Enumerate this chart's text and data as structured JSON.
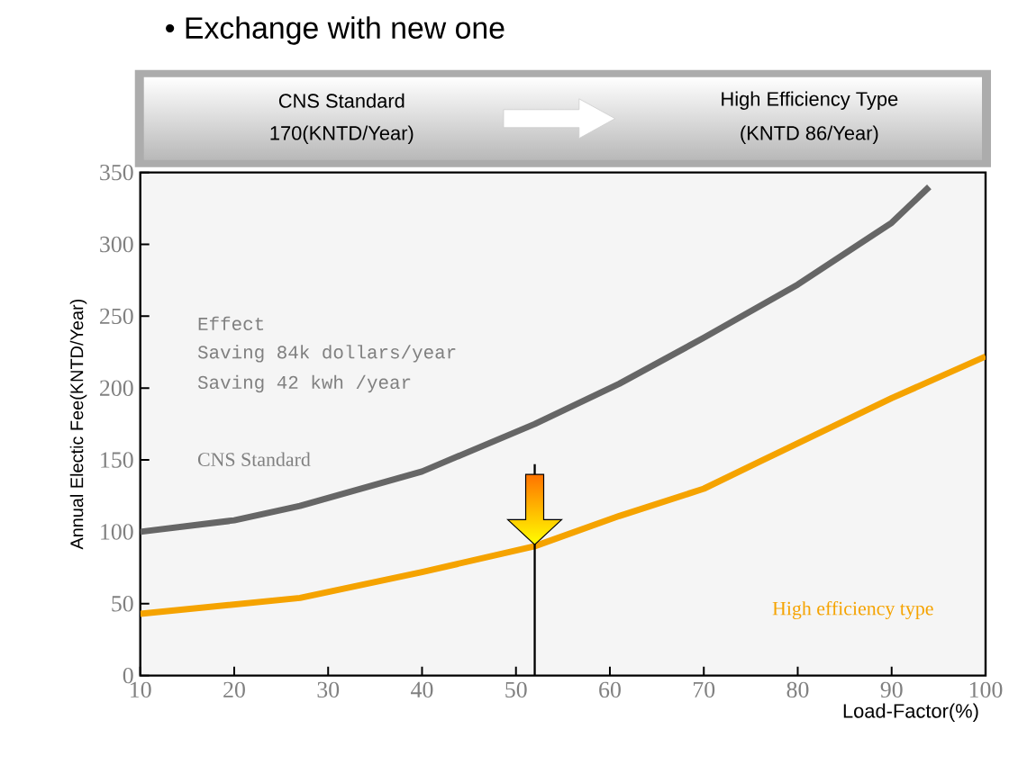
{
  "chart_data": {
    "type": "line",
    "title": "•  Exchange with new one",
    "xlabel": "Load-Factor(%)",
    "ylabel": "Annual Electic Fee(KNTD/Year)",
    "x": [
      10,
      20,
      27,
      40,
      52,
      61,
      70,
      80,
      90,
      94
    ],
    "series": [
      {
        "name": "CNS Standard",
        "color": "#666666",
        "values": [
          100,
          108,
          118,
          142,
          175,
          203,
          235,
          272,
          315,
          340
        ]
      },
      {
        "name": "High efficiency type",
        "color": "#f5a300",
        "x": [
          10,
          27,
          40,
          52,
          61,
          70,
          76,
          90,
          100
        ],
        "values": [
          43,
          54,
          72,
          90,
          111,
          130,
          149,
          193,
          222
        ]
      }
    ],
    "xlim": [
      10,
      100
    ],
    "ylim": [
      0,
      350
    ],
    "xticks": [
      10,
      20,
      30,
      40,
      50,
      60,
      70,
      80,
      90,
      100
    ],
    "yticks": [
      0,
      50,
      100,
      150,
      200,
      250,
      300,
      350
    ],
    "ref_lines": [
      {
        "axis": "x",
        "value": 52,
        "color": "#000000"
      }
    ],
    "annotations": [
      "CNS Standard",
      "170(KNTD/Year)",
      "High Efficiency Type",
      "(KNTD 86/Year)",
      "Effect",
      "Saving 84k dollars/year",
      "Saving 42  kwh /year"
    ],
    "grid": false,
    "marker": "none",
    "line_style": "solid"
  }
}
